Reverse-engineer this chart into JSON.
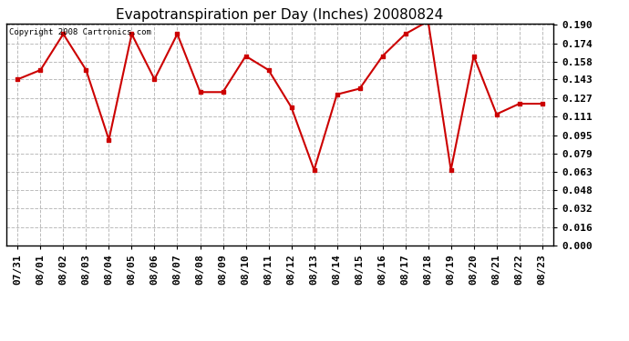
{
  "title": "Evapotranspiration per Day (Inches) 20080824",
  "copyright_text": "Copyright 2008 Cartronics.com",
  "x_labels": [
    "07/31",
    "08/01",
    "08/02",
    "08/03",
    "08/04",
    "08/05",
    "08/06",
    "08/07",
    "08/08",
    "08/09",
    "08/10",
    "08/11",
    "08/12",
    "08/13",
    "08/14",
    "08/15",
    "08/16",
    "08/17",
    "08/18",
    "08/19",
    "08/20",
    "08/21",
    "08/22",
    "08/23"
  ],
  "y_values": [
    0.143,
    0.151,
    0.182,
    0.151,
    0.091,
    0.182,
    0.143,
    0.182,
    0.132,
    0.132,
    0.163,
    0.151,
    0.119,
    0.065,
    0.13,
    0.135,
    0.163,
    0.182,
    0.193,
    0.065,
    0.163,
    0.113,
    0.122,
    0.122
  ],
  "line_color": "#cc0000",
  "marker": "s",
  "marker_size": 2.5,
  "line_width": 1.5,
  "ylim_min": 0.0,
  "ylim_max": 0.1907,
  "yticks": [
    0.0,
    0.016,
    0.032,
    0.048,
    0.063,
    0.079,
    0.095,
    0.111,
    0.127,
    0.143,
    0.158,
    0.174,
    0.19
  ],
  "grid_color": "#bbbbbb",
  "grid_style": "--",
  "bg_color": "#ffffff",
  "plot_bg_color": "#ffffff",
  "title_fontsize": 11,
  "tick_fontsize": 8,
  "copyright_fontsize": 6.5
}
